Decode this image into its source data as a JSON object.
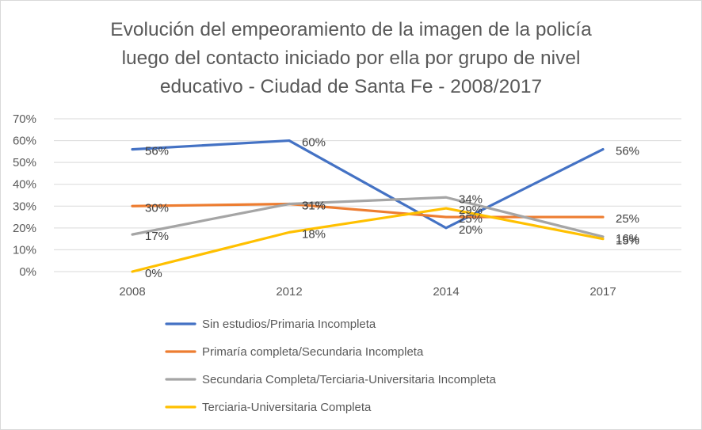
{
  "chart_data": {
    "type": "line",
    "title": "Evolución del empeoramiento de la imagen de la policía luego del contacto iniciado por ella por grupo de nivel educativo - Ciudad de Santa Fe - 2008/2017",
    "title_lines": [
      "Evolución del empeoramiento de la imagen de la policía",
      "luego del contacto iniciado por ella por grupo de nivel",
      "educativo - Ciudad de Santa Fe - 2008/2017"
    ],
    "categories": [
      "2008",
      "2012",
      "2014",
      "2017"
    ],
    "y_ticks": [
      "0%",
      "10%",
      "20%",
      "30%",
      "40%",
      "50%",
      "60%",
      "70%"
    ],
    "ylim": [
      0,
      70
    ],
    "grid": true,
    "legend_position": "bottom",
    "series": [
      {
        "name": "Sin estudios/Primaria Incompleta",
        "color": "#4472C4",
        "values": [
          56,
          60,
          20,
          56
        ],
        "labels": [
          "56%",
          "60%",
          "20%",
          "56%"
        ]
      },
      {
        "name": "Primaría completa/Secundaria Incompleta",
        "color": "#ED7D31",
        "values": [
          30,
          31,
          25,
          25
        ],
        "labels": [
          "30%",
          "31%",
          "25%",
          "25%"
        ]
      },
      {
        "name": "Secundaria Completa/Terciaria-Universitaria Incompleta",
        "color": "#A5A5A5",
        "values": [
          17,
          31,
          34,
          16
        ],
        "labels": [
          "17%",
          "31%",
          "34%",
          "16%"
        ]
      },
      {
        "name": "Terciaria-Universitaria Completa",
        "color": "#FFC000",
        "values": [
          0,
          18,
          29,
          15
        ],
        "labels": [
          "0%",
          "18%",
          "29%",
          "15%"
        ]
      }
    ]
  }
}
